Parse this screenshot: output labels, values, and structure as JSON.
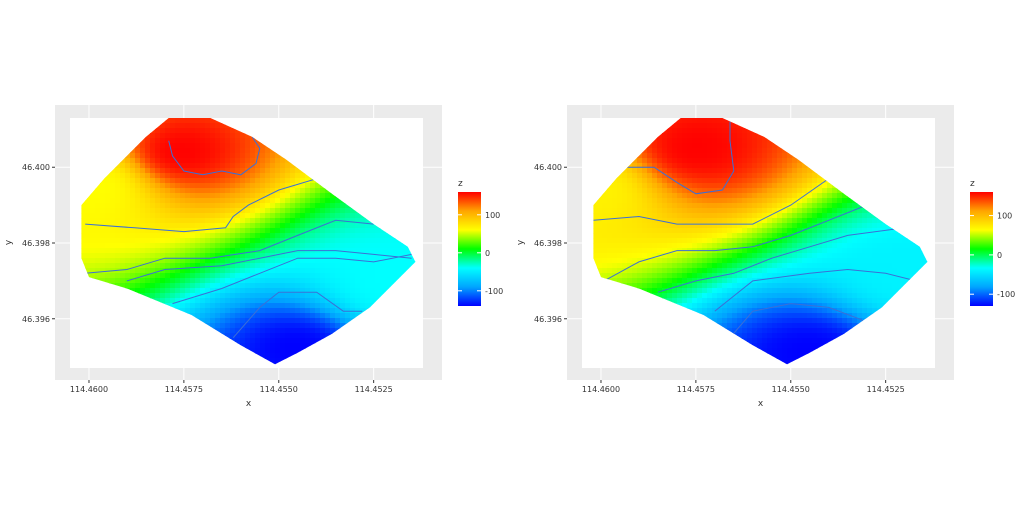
{
  "chart_data": [
    {
      "type": "heatmap",
      "title": "",
      "xlabel": "x",
      "ylabel": "y",
      "xlim": [
        114.4605,
        114.4512
      ],
      "ylim": [
        46.3947,
        46.4013
      ],
      "x_reversed": true,
      "x_ticks": [
        {
          "value": 114.46,
          "label": "114.4600"
        },
        {
          "value": 114.4575,
          "label": "114.4575"
        },
        {
          "value": 114.455,
          "label": "114.4550"
        },
        {
          "value": 114.4525,
          "label": "114.4525"
        }
      ],
      "y_ticks": [
        {
          "value": 46.396,
          "label": "46.396"
        },
        {
          "value": 46.398,
          "label": "46.398"
        },
        {
          "value": 46.4,
          "label": "46.400"
        }
      ],
      "grid": true,
      "legend": {
        "title": "z",
        "position": "right",
        "range": [
          -140,
          160
        ],
        "ticks": [
          {
            "value": 100,
            "label": "100"
          },
          {
            "value": 0,
            "label": "0"
          },
          {
            "value": -100,
            "label": "-100"
          }
        ]
      },
      "colorscale": [
        "#0000ff",
        "#00a5ff",
        "#00ffff",
        "#00ff00",
        "#ffff00",
        "#ffa500",
        "#ff0000"
      ],
      "contour_color": "#3b6fd6",
      "boundary": [
        [
          114.4579,
          46.4013
        ],
        [
          114.4568,
          46.4013
        ],
        [
          114.4557,
          46.4008
        ],
        [
          114.4548,
          46.4002
        ],
        [
          114.4536,
          46.3993
        ],
        [
          114.4525,
          46.3985
        ],
        [
          114.4516,
          46.3979
        ],
        [
          114.4514,
          46.3975
        ],
        [
          114.4526,
          46.3963
        ],
        [
          114.4536,
          46.3956
        ],
        [
          114.4545,
          46.3951
        ],
        [
          114.4551,
          46.3948
        ],
        [
          114.456,
          46.3953
        ],
        [
          114.4573,
          46.3961
        ],
        [
          114.459,
          46.3968
        ],
        [
          114.46,
          46.3971
        ],
        [
          114.4602,
          46.3976
        ],
        [
          114.4602,
          46.399
        ],
        [
          114.4596,
          46.3997
        ],
        [
          114.459,
          46.4003
        ],
        [
          114.4585,
          46.4008
        ]
      ],
      "contours": [
        [
          [
            114.4579,
            46.4007
          ],
          [
            114.4578,
            46.4003
          ],
          [
            114.4575,
            46.3999
          ],
          [
            114.457,
            46.3998
          ],
          [
            114.4565,
            46.3999
          ],
          [
            114.456,
            46.3998
          ],
          [
            114.4556,
            46.4001
          ],
          [
            114.4555,
            46.4005
          ],
          [
            114.4557,
            46.4008
          ]
        ],
        [
          [
            114.4601,
            46.3985
          ],
          [
            114.4588,
            46.3984
          ],
          [
            114.4575,
            46.3983
          ],
          [
            114.4564,
            46.3984
          ],
          [
            114.4562,
            46.3987
          ],
          [
            114.4558,
            46.399
          ],
          [
            114.455,
            46.3994
          ],
          [
            114.454,
            46.3997
          ],
          [
            114.4535,
            46.3995
          ]
        ],
        [
          [
            114.4601,
            46.3972
          ],
          [
            114.459,
            46.3973
          ],
          [
            114.458,
            46.3976
          ],
          [
            114.4568,
            46.3976
          ],
          [
            114.4555,
            46.3978
          ],
          [
            114.4545,
            46.3982
          ],
          [
            114.4535,
            46.3986
          ],
          [
            114.4525,
            46.3985
          ]
        ],
        [
          [
            114.459,
            46.397
          ],
          [
            114.458,
            46.3973
          ],
          [
            114.4565,
            46.3974
          ],
          [
            114.4555,
            46.3976
          ],
          [
            114.4545,
            46.3978
          ],
          [
            114.4535,
            46.3978
          ],
          [
            114.4525,
            46.3977
          ],
          [
            114.4515,
            46.3976
          ]
        ],
        [
          [
            114.4578,
            46.3964
          ],
          [
            114.4565,
            46.3968
          ],
          [
            114.4555,
            46.3972
          ],
          [
            114.4545,
            46.3976
          ],
          [
            114.4535,
            46.3976
          ],
          [
            114.4525,
            46.3975
          ],
          [
            114.4515,
            46.3977
          ]
        ],
        [
          [
            114.4562,
            46.3955
          ],
          [
            114.4555,
            46.3963
          ],
          [
            114.455,
            46.3967
          ],
          [
            114.454,
            46.3967
          ],
          [
            114.4533,
            46.3962
          ],
          [
            114.4528,
            46.3962
          ]
        ]
      ],
      "field_sources": [
        {
          "x": 114.4576,
          "y": 46.4004,
          "z": 160,
          "r": 0.0025
        },
        {
          "x": 114.4545,
          "y": 46.3952,
          "z": -140,
          "r": 0.0025
        },
        {
          "x": 114.46,
          "y": 46.3995,
          "z": 60,
          "r": 0.003
        },
        {
          "x": 114.452,
          "y": 46.397,
          "z": -40,
          "r": 0.003
        }
      ]
    },
    {
      "type": "heatmap",
      "title": "",
      "xlabel": "x",
      "ylabel": "y",
      "xlim": [
        114.4605,
        114.4512
      ],
      "ylim": [
        46.3947,
        46.4013
      ],
      "x_reversed": true,
      "x_ticks": [
        {
          "value": 114.46,
          "label": "114.4600"
        },
        {
          "value": 114.4575,
          "label": "114.4575"
        },
        {
          "value": 114.455,
          "label": "114.4550"
        },
        {
          "value": 114.4525,
          "label": "114.4525"
        }
      ],
      "y_ticks": [
        {
          "value": 46.396,
          "label": "46.396"
        },
        {
          "value": 46.398,
          "label": "46.398"
        },
        {
          "value": 46.4,
          "label": "46.400"
        }
      ],
      "grid": true,
      "legend": {
        "title": "z",
        "position": "right",
        "range": [
          -130,
          160
        ],
        "ticks": [
          {
            "value": 100,
            "label": "100"
          },
          {
            "value": 0,
            "label": "0"
          },
          {
            "value": -100,
            "label": "-100"
          }
        ]
      },
      "colorscale": [
        "#0000ff",
        "#00a5ff",
        "#00ffff",
        "#00ff00",
        "#ffff00",
        "#ffa500",
        "#ff0000"
      ],
      "contour_color": "#3b6fd6",
      "boundary": [
        [
          114.4579,
          46.4013
        ],
        [
          114.4568,
          46.4013
        ],
        [
          114.4557,
          46.4008
        ],
        [
          114.4548,
          46.4002
        ],
        [
          114.4536,
          46.3993
        ],
        [
          114.4525,
          46.3985
        ],
        [
          114.4516,
          46.3979
        ],
        [
          114.4514,
          46.3975
        ],
        [
          114.4526,
          46.3963
        ],
        [
          114.4536,
          46.3956
        ],
        [
          114.4545,
          46.3951
        ],
        [
          114.4551,
          46.3948
        ],
        [
          114.456,
          46.3953
        ],
        [
          114.4573,
          46.3961
        ],
        [
          114.459,
          46.3968
        ],
        [
          114.46,
          46.3971
        ],
        [
          114.4602,
          46.3976
        ],
        [
          114.4602,
          46.399
        ],
        [
          114.4596,
          46.3997
        ],
        [
          114.459,
          46.4003
        ],
        [
          114.4585,
          46.4008
        ]
      ],
      "contours": [
        [
          [
            114.4593,
            46.4
          ],
          [
            114.4586,
            46.4
          ],
          [
            114.458,
            46.3996
          ],
          [
            114.4575,
            46.3993
          ],
          [
            114.4568,
            46.3994
          ],
          [
            114.4565,
            46.3999
          ],
          [
            114.4566,
            46.4007
          ],
          [
            114.4566,
            46.4012
          ]
        ],
        [
          [
            114.4602,
            46.3986
          ],
          [
            114.459,
            46.3987
          ],
          [
            114.458,
            46.3985
          ],
          [
            114.457,
            46.3985
          ],
          [
            114.456,
            46.3985
          ],
          [
            114.455,
            46.399
          ],
          [
            114.454,
            46.3997
          ],
          [
            114.4536,
            46.4001
          ]
        ],
        [
          [
            114.4601,
            46.3969
          ],
          [
            114.459,
            46.3975
          ],
          [
            114.458,
            46.3978
          ],
          [
            114.457,
            46.3978
          ],
          [
            114.456,
            46.3979
          ],
          [
            114.455,
            46.3982
          ],
          [
            114.454,
            46.3986
          ],
          [
            114.453,
            46.399
          ]
        ],
        [
          [
            114.4585,
            46.3967
          ],
          [
            114.4575,
            46.397
          ],
          [
            114.4565,
            46.3972
          ],
          [
            114.4555,
            46.3976
          ],
          [
            114.4545,
            46.3979
          ],
          [
            114.4535,
            46.3982
          ],
          [
            114.452,
            46.3984
          ]
        ],
        [
          [
            114.457,
            46.3962
          ],
          [
            114.4565,
            46.3966
          ],
          [
            114.456,
            46.397
          ],
          [
            114.4545,
            46.3972
          ],
          [
            114.4535,
            46.3973
          ],
          [
            114.4525,
            46.3972
          ],
          [
            114.4517,
            46.397
          ]
        ],
        [
          [
            114.4566,
            46.3955
          ],
          [
            114.456,
            46.3962
          ],
          [
            114.455,
            46.3964
          ],
          [
            114.454,
            46.3963
          ],
          [
            114.4532,
            46.396
          ],
          [
            114.4528,
            46.3958
          ]
        ]
      ],
      "field_sources": [
        {
          "x": 114.4575,
          "y": 46.4005,
          "z": 160,
          "r": 0.003
        },
        {
          "x": 114.4545,
          "y": 46.3951,
          "z": -130,
          "r": 0.0028
        },
        {
          "x": 114.4602,
          "y": 46.3994,
          "z": 70,
          "r": 0.003
        },
        {
          "x": 114.452,
          "y": 46.3972,
          "z": -40,
          "r": 0.003
        }
      ]
    }
  ]
}
